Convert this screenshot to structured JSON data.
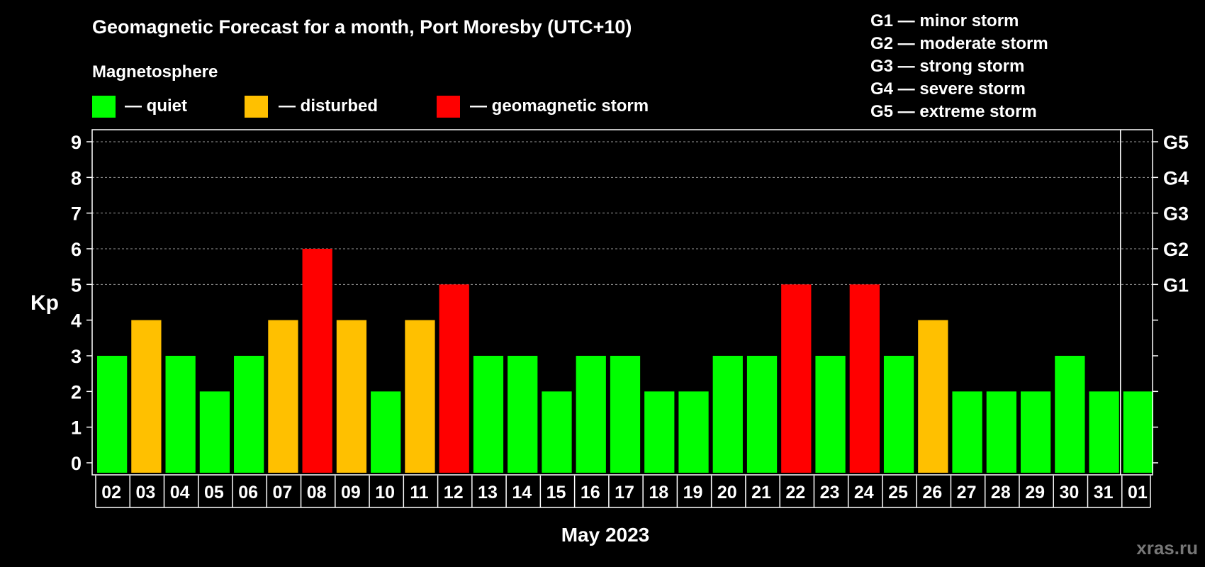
{
  "chart_data": {
    "type": "bar",
    "title": "Geomagnetic Forecast for a month, Port Moresby (UTC+10)",
    "subtitle": "Magnetosphere",
    "xlabel": "May 2023",
    "ylabel": "Kp",
    "ylim": [
      0,
      9
    ],
    "yticks": [
      "0",
      "1",
      "2",
      "3",
      "4",
      "5",
      "6",
      "7",
      "8",
      "9"
    ],
    "categories": [
      "02",
      "03",
      "04",
      "05",
      "06",
      "07",
      "08",
      "09",
      "10",
      "11",
      "12",
      "13",
      "14",
      "15",
      "16",
      "17",
      "18",
      "19",
      "20",
      "21",
      "22",
      "23",
      "24",
      "25",
      "26",
      "27",
      "28",
      "29",
      "30",
      "31",
      "01"
    ],
    "values": [
      3,
      4,
      3,
      2,
      3,
      4,
      6,
      4,
      2,
      4,
      5,
      3,
      3,
      2,
      3,
      3,
      2,
      2,
      3,
      3,
      5,
      3,
      5,
      3,
      4,
      2,
      2,
      2,
      3,
      2,
      2
    ],
    "month_boundary_before": "01",
    "legend": [
      {
        "label": "— quiet",
        "color": "#00ff00"
      },
      {
        "label": "— disturbed",
        "color": "#ffc000"
      },
      {
        "label": "— geomagnetic storm",
        "color": "#ff0000"
      }
    ],
    "storm_levels": [
      {
        "label": "G1",
        "kp": 5
      },
      {
        "label": "G2",
        "kp": 6
      },
      {
        "label": "G3",
        "kp": 7
      },
      {
        "label": "G4",
        "kp": 8
      },
      {
        "label": "G5",
        "kp": 9
      }
    ],
    "storm_key": [
      "G1 — minor storm",
      "G2 — moderate storm",
      "G3 — strong storm",
      "G4 — severe storm",
      "G5 — extreme storm"
    ],
    "grid": "dashed at Kp 5-9",
    "legend_position": "top"
  },
  "colors": {
    "quiet": "#00ff00",
    "disturbed": "#ffc000",
    "storm": "#ff0000",
    "background": "#000000"
  },
  "watermark": "xras.ru"
}
